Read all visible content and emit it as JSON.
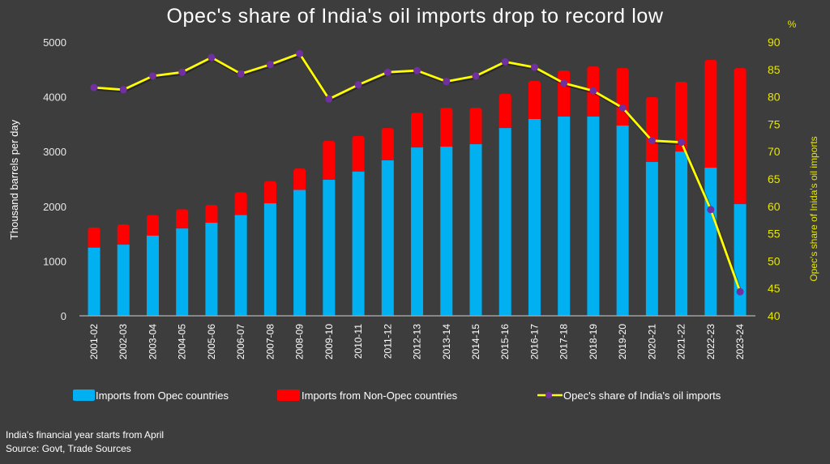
{
  "chart_data": {
    "type": "bar",
    "subtype": "stacked-bar-with-line-secondary-axis",
    "title": "Opec's share of India's oil imports drop to record low",
    "xlabel": "",
    "ylabel": "Thousand barrels per day",
    "y2label": "Opec's share of Inida's oil imports",
    "y2unit": "%",
    "ylim": [
      0,
      5000
    ],
    "yticks": [
      0,
      1000,
      2000,
      3000,
      4000,
      5000
    ],
    "y2lim": [
      40,
      90
    ],
    "y2ticks": [
      40,
      45,
      50,
      55,
      60,
      65,
      70,
      75,
      80,
      85,
      90
    ],
    "grid": false,
    "legend_position": "bottom",
    "categories": [
      "2001-02",
      "2002-03",
      "2003-04",
      "2004-05",
      "2005-06",
      "2006-07",
      "2007-08",
      "2008-09",
      "2009-10",
      "2010-11",
      "2011-12",
      "2012-13",
      "2013-14",
      "2014-15",
      "2015-16",
      "2016-17",
      "2017-18",
      "2018-19",
      "2019-20",
      "2020-21",
      "2021-22",
      "2022-23",
      "2023-24"
    ],
    "series": [
      {
        "name": "Imports from Opec countries",
        "type": "bar",
        "axis": "left",
        "color": "#00b0f0",
        "values": [
          1245,
          1300,
          1465,
          1595,
          1700,
          1840,
          2055,
          2300,
          2485,
          2635,
          2840,
          3075,
          3090,
          3135,
          3430,
          3595,
          3640,
          3640,
          3475,
          2810,
          3000,
          2705,
          2040
        ]
      },
      {
        "name": "Imports from Non-Opec countries",
        "type": "bar",
        "axis": "left",
        "color": "#ff0000",
        "values": [
          370,
          370,
          375,
          350,
          325,
          415,
          405,
          390,
          710,
          650,
          590,
          635,
          710,
          665,
          625,
          695,
          840,
          915,
          1050,
          1185,
          1275,
          1970,
          2485
        ]
      },
      {
        "name": "Opec's share of India's oil imports",
        "type": "line",
        "axis": "right",
        "color": "#ffff00",
        "marker_color": "#7030a0",
        "values": [
          81.7,
          81.3,
          83.8,
          84.5,
          87.2,
          84.2,
          85.9,
          87.9,
          79.6,
          82.2,
          84.5,
          84.8,
          82.8,
          83.8,
          86.4,
          85.4,
          82.5,
          81.1,
          78.0,
          72.0,
          71.7,
          59.4,
          44.4
        ]
      }
    ]
  },
  "notes": {
    "line1": "India's financial year starts from April",
    "line2": "Source: Govt, Trade Sources"
  },
  "colors": {
    "background": "#3d3d3d",
    "axis": "#a0a0a0"
  }
}
